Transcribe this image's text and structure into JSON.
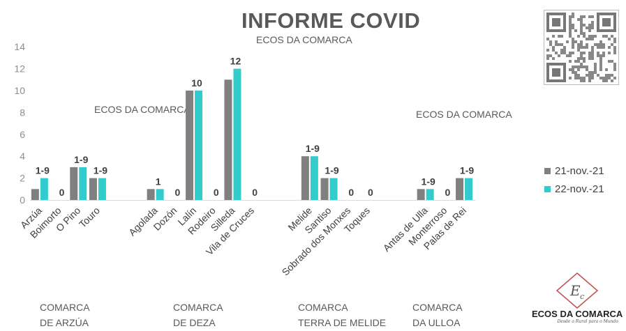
{
  "header": {
    "title": "INFORME COVID",
    "watermark": "ECOS DA COMARCA"
  },
  "chart_data": {
    "type": "bar",
    "categories": [
      "Arzúa",
      "Boimorto",
      "O Pino",
      "Touro",
      "Agolada",
      "Dozón",
      "Lalín",
      "Rodeiro",
      "Silleda",
      "Vila de Cruces",
      "Melide",
      "Santiso",
      "Sobrado dos Monxes",
      "Toques",
      "Antas de Ulla",
      "Monterroso",
      "Palas de Rei"
    ],
    "series": [
      {
        "name": "21-nov.-21",
        "color": "#808080",
        "values": [
          1,
          0,
          3,
          2,
          1,
          0,
          10,
          0,
          11,
          0,
          4,
          2,
          0,
          0,
          1,
          0,
          2
        ]
      },
      {
        "name": "22-nov.-21",
        "color": "#33cccc",
        "values": [
          2,
          0,
          3,
          2,
          1,
          0,
          10,
          0,
          12,
          0,
          4,
          2,
          0,
          0,
          1,
          0,
          2
        ]
      }
    ],
    "data_labels": [
      "1-9",
      "0",
      "1-9",
      "1-9",
      "1",
      "0",
      "10",
      "0",
      "12",
      "0",
      "1-9",
      "1-9",
      "0",
      "0",
      "1-9",
      "0",
      "1-9"
    ],
    "yticks": [
      0,
      2,
      4,
      6,
      8,
      10,
      12,
      14
    ],
    "ylim": [
      0,
      14
    ],
    "grid": false,
    "legend_position": "right",
    "groups": [
      {
        "line1": "COMARCA",
        "line2": "DE ARZÚA",
        "size": 4
      },
      {
        "line1": "COMARCA",
        "line2": "DE DEZA",
        "size": 6
      },
      {
        "line1": "COMARCA",
        "line2": "TERRA DE MELIDE",
        "size": 4
      },
      {
        "line1": "COMARCA",
        "line2": "DA ULLOA",
        "size": 3
      }
    ]
  },
  "logo": {
    "name": "ECOS DA COMARCA",
    "tagline": "Desde o Rural para o Mundo"
  }
}
